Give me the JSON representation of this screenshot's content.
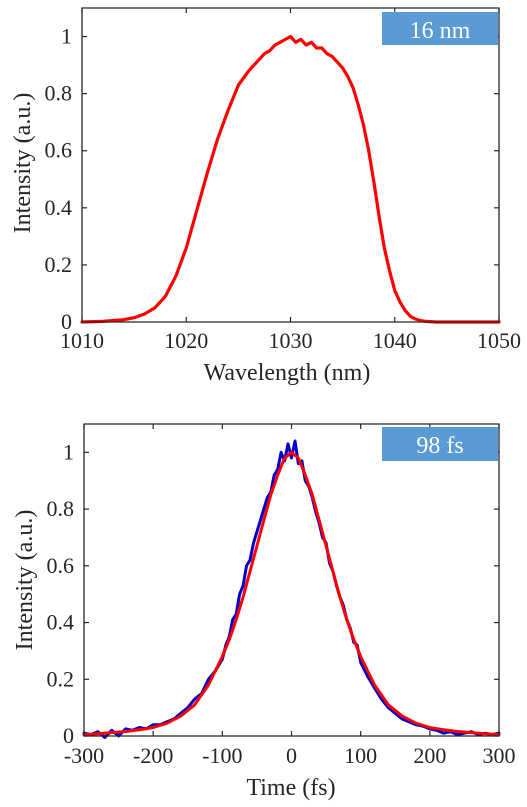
{
  "chart_data": [
    {
      "type": "line",
      "title": "",
      "xlabel": "Wavelength (nm)",
      "ylabel": "Intensity (a.u.)",
      "xlim": [
        1010,
        1050
      ],
      "ylim": [
        0,
        1.1
      ],
      "xticks": [
        "1010",
        "1020",
        "1030",
        "1040",
        "1050"
      ],
      "yticks": [
        "0",
        "0.2",
        "0.4",
        "0.6",
        "0.8",
        "1"
      ],
      "grid": false,
      "annotation": "16 nm",
      "annotation_color": "#5b9bd5",
      "series": [
        {
          "color": "#ff0000",
          "x": [
            1010,
            1012,
            1014,
            1015,
            1016,
            1017,
            1018,
            1019,
            1020,
            1021,
            1022,
            1023,
            1024,
            1025,
            1026,
            1027,
            1027.5,
            1028,
            1028.5,
            1029,
            1029.5,
            1030,
            1030.5,
            1031,
            1031.5,
            1032,
            1032.5,
            1033,
            1033.5,
            1034,
            1034.5,
            1035,
            1035.5,
            1036,
            1036.5,
            1037,
            1037.5,
            1038,
            1038.5,
            1039,
            1039.5,
            1040,
            1040.5,
            1041,
            1041.5,
            1042,
            1042.5,
            1043,
            1044,
            1046,
            1050
          ],
          "y": [
            0.0,
            0.002,
            0.008,
            0.015,
            0.028,
            0.05,
            0.09,
            0.16,
            0.26,
            0.39,
            0.52,
            0.64,
            0.74,
            0.83,
            0.88,
            0.92,
            0.94,
            0.95,
            0.97,
            0.98,
            0.99,
            1.0,
            0.98,
            0.99,
            0.97,
            0.98,
            0.96,
            0.96,
            0.94,
            0.93,
            0.91,
            0.89,
            0.86,
            0.82,
            0.76,
            0.69,
            0.6,
            0.49,
            0.37,
            0.26,
            0.18,
            0.11,
            0.07,
            0.04,
            0.02,
            0.01,
            0.005,
            0.002,
            0.0,
            0.0,
            0.0
          ]
        }
      ]
    },
    {
      "type": "line",
      "title": "",
      "xlabel": "Time (fs)",
      "ylabel": "Intensity (a.u.)",
      "xlim": [
        -300,
        300
      ],
      "ylim": [
        0,
        1.1
      ],
      "xticks": [
        "-300",
        "-200",
        "-100",
        "0",
        "100",
        "200",
        "300"
      ],
      "yticks": [
        "0",
        "0.2",
        "0.4",
        "0.6",
        "0.8",
        "1"
      ],
      "grid": false,
      "annotation": "98 fs",
      "annotation_color": "#5b9bd5",
      "series": [
        {
          "color": "#0000cc",
          "x": [
            -300,
            -290,
            -280,
            -270,
            -260,
            -250,
            -240,
            -230,
            -220,
            -210,
            -200,
            -190,
            -180,
            -170,
            -160,
            -150,
            -140,
            -130,
            -120,
            -110,
            -100,
            -95,
            -90,
            -85,
            -80,
            -75,
            -70,
            -65,
            -60,
            -55,
            -50,
            -45,
            -40,
            -35,
            -30,
            -25,
            -20,
            -15,
            -10,
            -5,
            0,
            5,
            10,
            15,
            20,
            25,
            30,
            35,
            40,
            45,
            50,
            55,
            60,
            65,
            70,
            75,
            80,
            85,
            90,
            95,
            100,
            110,
            120,
            130,
            140,
            150,
            160,
            170,
            180,
            190,
            200,
            210,
            220,
            230,
            240,
            250,
            260,
            270,
            280,
            290,
            300
          ],
          "y": [
            0.01,
            0.005,
            0.015,
            -0.005,
            0.02,
            0.0,
            0.025,
            0.02,
            0.03,
            0.025,
            0.04,
            0.04,
            0.05,
            0.06,
            0.08,
            0.1,
            0.13,
            0.15,
            0.2,
            0.23,
            0.27,
            0.32,
            0.35,
            0.41,
            0.43,
            0.5,
            0.53,
            0.6,
            0.62,
            0.68,
            0.72,
            0.76,
            0.8,
            0.84,
            0.86,
            0.92,
            0.94,
            1.0,
            0.97,
            1.03,
            0.98,
            1.04,
            0.96,
            0.97,
            0.9,
            0.88,
            0.84,
            0.79,
            0.75,
            0.7,
            0.68,
            0.61,
            0.58,
            0.53,
            0.49,
            0.46,
            0.41,
            0.38,
            0.33,
            0.32,
            0.26,
            0.21,
            0.17,
            0.13,
            0.1,
            0.08,
            0.06,
            0.05,
            0.04,
            0.035,
            0.025,
            0.02,
            0.01,
            0.015,
            0.005,
            0.01,
            0.015,
            0.005,
            0.01,
            0.005,
            0.01
          ]
        },
        {
          "color": "#ff0000",
          "x": [
            -300,
            -280,
            -260,
            -240,
            -220,
            -200,
            -180,
            -160,
            -140,
            -120,
            -100,
            -90,
            -80,
            -70,
            -60,
            -50,
            -40,
            -30,
            -20,
            -10,
            0,
            10,
            20,
            30,
            40,
            50,
            60,
            70,
            80,
            90,
            100,
            120,
            140,
            160,
            180,
            200,
            220,
            240,
            260,
            280,
            300
          ],
          "y": [
            0.005,
            0.008,
            0.012,
            0.016,
            0.022,
            0.03,
            0.045,
            0.07,
            0.11,
            0.18,
            0.28,
            0.34,
            0.41,
            0.49,
            0.58,
            0.67,
            0.76,
            0.85,
            0.92,
            0.98,
            1.0,
            0.98,
            0.92,
            0.85,
            0.76,
            0.67,
            0.58,
            0.49,
            0.41,
            0.34,
            0.28,
            0.18,
            0.11,
            0.07,
            0.045,
            0.03,
            0.022,
            0.016,
            0.012,
            0.008,
            0.005
          ]
        }
      ]
    }
  ]
}
